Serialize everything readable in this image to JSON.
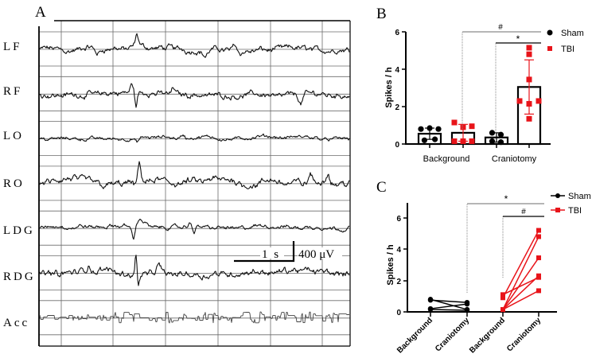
{
  "chart_data": [
    {
      "panel": "A",
      "type": "line",
      "title": "A",
      "description": "Representative EEG traces",
      "channels": [
        "LF",
        "RF",
        "LO",
        "RO",
        "LDG",
        "RDG",
        "Acc"
      ],
      "scale_bar": {
        "time_label": "1 s",
        "amplitude_label": "400 μV"
      },
      "grid": true
    },
    {
      "panel": "B",
      "type": "bar",
      "title": "B",
      "categories": [
        "Background",
        "Craniotomy"
      ],
      "ylabel": "Spikes / h",
      "xlabel": "",
      "ylim": [
        0,
        6
      ],
      "yticks": [
        0,
        2,
        4,
        6
      ],
      "legend": [
        {
          "name": "Sham",
          "marker": "circle",
          "color": "#000000"
        },
        {
          "name": "TBI",
          "marker": "square",
          "color": "#e8141a"
        }
      ],
      "legend_position": "top-right",
      "series": [
        {
          "name": "Sham",
          "means": [
            0.55,
            0.35
          ],
          "sd": [
            0.3,
            0.25
          ],
          "points": [
            [
              0.8,
              0.85,
              0.8,
              0.2,
              0.25
            ],
            [
              0.6,
              0.5,
              0.15,
              0.1
            ]
          ]
        },
        {
          "name": "TBI",
          "means": [
            0.6,
            3.05
          ],
          "sd": [
            0.45,
            1.45
          ],
          "points": [
            [
              1.15,
              0.9,
              0.95,
              0.15,
              0.15,
              0.15
            ],
            [
              5.15,
              4.8,
              3.45,
              2.3,
              2.15,
              2.3,
              1.35
            ]
          ]
        }
      ],
      "annotations": [
        {
          "text": "#",
          "from": "TBI Background",
          "to": "TBI Craniotomy"
        },
        {
          "text": "*",
          "from": "Sham Craniotomy",
          "to": "TBI Craniotomy"
        }
      ]
    },
    {
      "panel": "C",
      "type": "line",
      "title": "C",
      "categories": [
        "Background",
        "Craniotomy",
        "Background",
        "Craniotomy"
      ],
      "ylabel": "Spikes / h",
      "xlabel": "",
      "ylim": [
        0,
        7
      ],
      "yticks": [
        0,
        2,
        4,
        6
      ],
      "legend": [
        {
          "name": "Sham",
          "marker": "circle-line",
          "color": "#000000"
        },
        {
          "name": "TBI",
          "marker": "square-line",
          "color": "#e8141a"
        }
      ],
      "legend_position": "top-right",
      "series": [
        {
          "name": "Sham",
          "pairs": [
            [
              0.8,
              0.15
            ],
            [
              0.75,
              0.6
            ],
            [
              0.2,
              0.5
            ],
            [
              0.15,
              0.1
            ]
          ]
        },
        {
          "name": "TBI",
          "pairs": [
            [
              1.1,
              2.2
            ],
            [
              0.9,
              5.2
            ],
            [
              0.15,
              4.8
            ],
            [
              0.15,
              3.45
            ],
            [
              0.15,
              2.3
            ],
            [
              0.15,
              1.35
            ]
          ]
        }
      ],
      "annotations": [
        {
          "text": "*",
          "from": "Sham Craniotomy",
          "to": "TBI Craniotomy"
        },
        {
          "text": "#",
          "from": "TBI Background",
          "to": "TBI Craniotomy"
        }
      ]
    }
  ],
  "panelA": {
    "label": "A",
    "channels": [
      "LF",
      "RF",
      "LO",
      "RO",
      "LDG",
      "RDG",
      "Acc"
    ],
    "scale_time": "1 s",
    "scale_amp": "400 μV"
  },
  "panelB": {
    "label": "B",
    "ylabel": "Spikes / h",
    "yticks": [
      "0",
      "2",
      "4",
      "6"
    ],
    "xcats": [
      "Background",
      "Craniotomy"
    ],
    "legend": [
      "Sham",
      "TBI"
    ],
    "sig_hash": "#",
    "sig_star": "*"
  },
  "panelC": {
    "label": "C",
    "ylabel": "Spikes / h",
    "yticks": [
      "0",
      "2",
      "4",
      "6"
    ],
    "xcats": [
      "Background",
      "Craniotomy",
      "Background",
      "Craniotomy"
    ],
    "legend": [
      "Sham",
      "TBI"
    ],
    "sig_star": "*",
    "sig_hash": "#"
  },
  "colors": {
    "sham": "#000000",
    "tbi": "#e8141a",
    "grid": "#555555",
    "bracket_gray": "#8a8a8a"
  }
}
